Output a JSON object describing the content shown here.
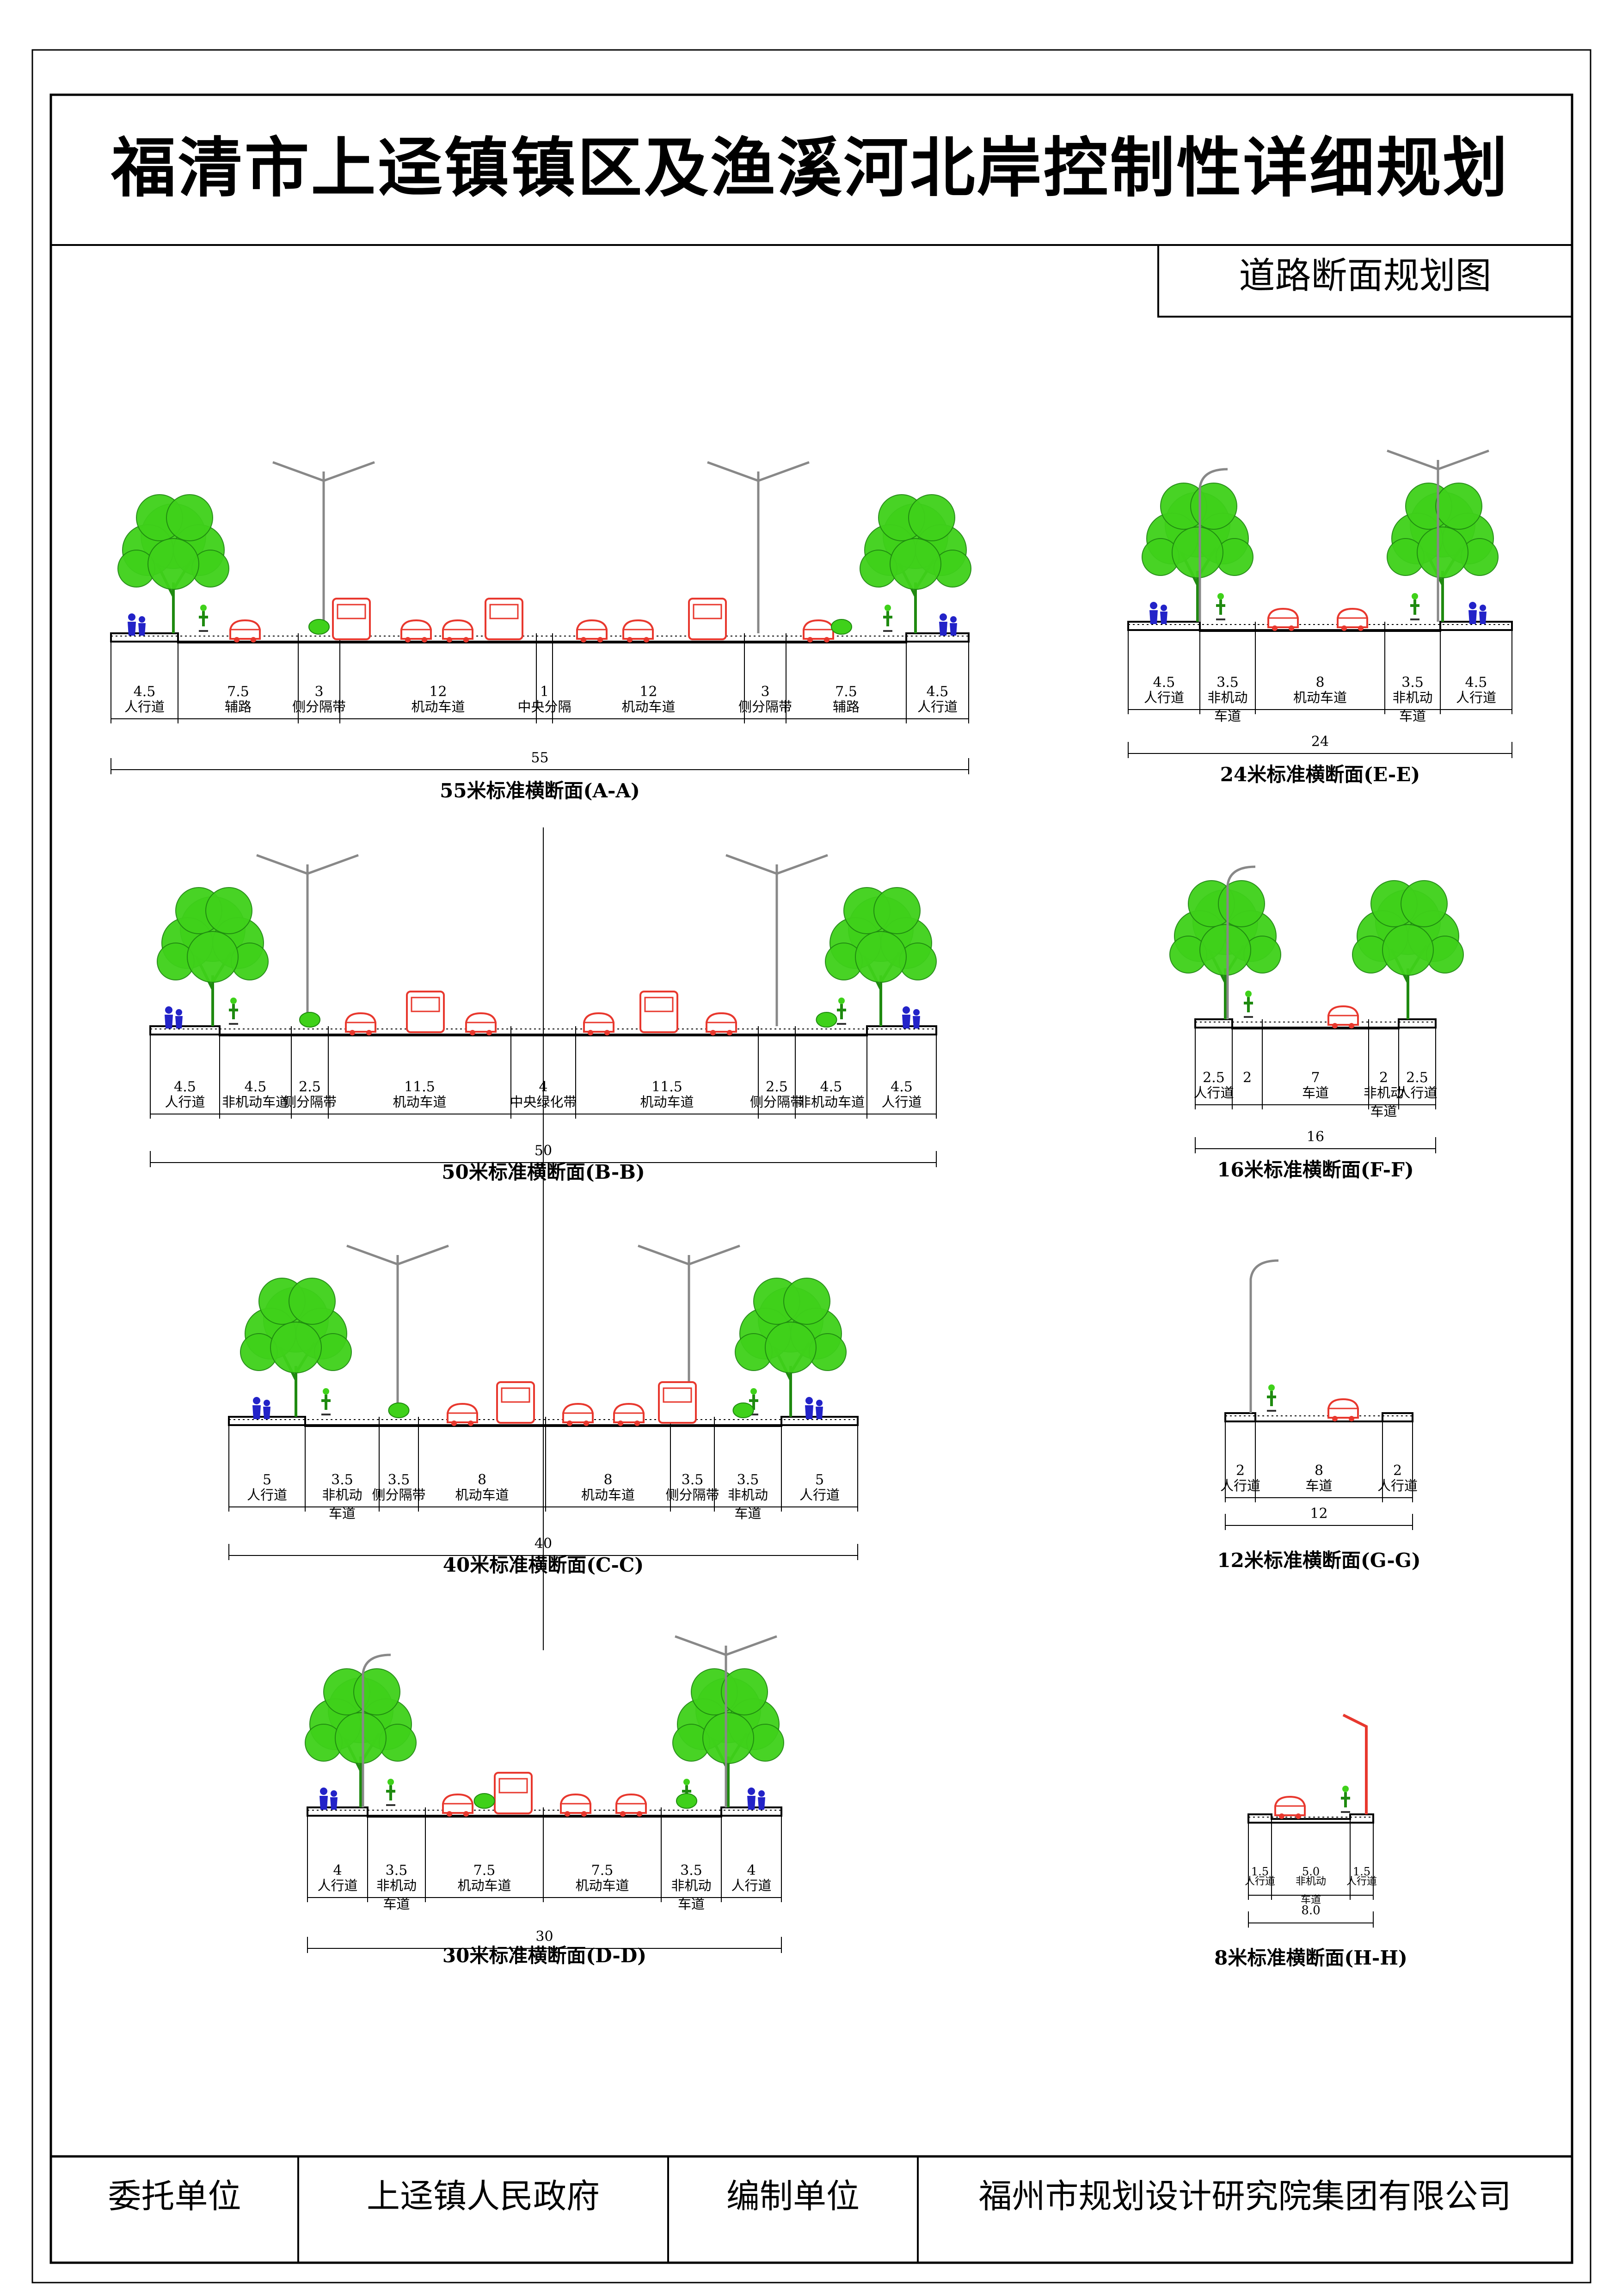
{
  "header": {
    "title": "福清市上迳镇镇区及渔溪河北岸控制性详细规划",
    "subtitle": "道路断面规划图"
  },
  "footer": {
    "client_label": "委托单位",
    "client_value": "上迳镇人民政府",
    "author_label": "编制单位",
    "author_value": "福州市规划设计研究院集团有限公司"
  },
  "sections": [
    {
      "id": "A-A",
      "title": "55米标准横断面(A-A)",
      "total": "55",
      "segments": [
        {
          "width": "4.5",
          "label": [
            "人行道"
          ]
        },
        {
          "width": "7.5",
          "label": [
            "辅路"
          ]
        },
        {
          "width": "3",
          "label": [
            "侧分隔带"
          ]
        },
        {
          "width": "12",
          "label": [
            "机动车道"
          ]
        },
        {
          "width": "1",
          "label": [
            "中央分隔"
          ]
        },
        {
          "width": "12",
          "label": [
            "机动车道"
          ]
        },
        {
          "width": "3",
          "label": [
            "侧分隔带"
          ]
        },
        {
          "width": "7.5",
          "label": [
            "辅路"
          ]
        },
        {
          "width": "4.5",
          "label": [
            "人行道"
          ]
        }
      ]
    },
    {
      "id": "B-B",
      "title": "50米标准横断面(B-B)",
      "total": "50",
      "segments": [
        {
          "width": "4.5",
          "label": [
            "人行道"
          ]
        },
        {
          "width": "4.5",
          "label": [
            "非机动车道"
          ]
        },
        {
          "width": "2.5",
          "label": [
            "侧分隔带"
          ]
        },
        {
          "width": "11.5",
          "label": [
            "机动车道"
          ]
        },
        {
          "width": "4",
          "label": [
            "中央绿化带"
          ]
        },
        {
          "width": "11.5",
          "label": [
            "机动车道"
          ]
        },
        {
          "width": "2.5",
          "label": [
            "侧分隔带"
          ]
        },
        {
          "width": "4.5",
          "label": [
            "非机动车道"
          ]
        },
        {
          "width": "4.5",
          "label": [
            "人行道"
          ]
        }
      ]
    },
    {
      "id": "C-C",
      "title": "40米标准横断面(C-C)",
      "total": "40",
      "segments": [
        {
          "width": "5",
          "label": [
            "人行道"
          ]
        },
        {
          "width": "3.5",
          "label": [
            "非机动",
            "车道"
          ]
        },
        {
          "width": "3.5",
          "label": [
            "侧分隔带"
          ]
        },
        {
          "width": "8",
          "label": [
            "机动车道"
          ]
        },
        {
          "width": "8",
          "label": [
            "机动车道"
          ]
        },
        {
          "width": "3.5",
          "label": [
            "侧分隔带"
          ]
        },
        {
          "width": "3.5",
          "label": [
            "非机动",
            "车道"
          ]
        },
        {
          "width": "5",
          "label": [
            "人行道"
          ]
        }
      ]
    },
    {
      "id": "D-D",
      "title": "30米标准横断面(D-D)",
      "total": "30",
      "segments": [
        {
          "width": "4",
          "label": [
            "人行道"
          ]
        },
        {
          "width": "3.5",
          "label": [
            "非机动",
            "车道"
          ]
        },
        {
          "width": "7.5",
          "label": [
            "机动车道"
          ]
        },
        {
          "width": "7.5",
          "label": [
            "机动车道"
          ]
        },
        {
          "width": "3.5",
          "label": [
            "非机动",
            "车道"
          ]
        },
        {
          "width": "4",
          "label": [
            "人行道"
          ]
        }
      ]
    },
    {
      "id": "E-E",
      "title": "24米标准横断面(E-E)",
      "total": "24",
      "segments": [
        {
          "width": "4.5",
          "label": [
            "人行道"
          ]
        },
        {
          "width": "3.5",
          "label": [
            "非机动",
            "车道"
          ]
        },
        {
          "width": "8",
          "label": [
            "机动车道"
          ]
        },
        {
          "width": "3.5",
          "label": [
            "非机动",
            "车道"
          ]
        },
        {
          "width": "4.5",
          "label": [
            "人行道"
          ]
        }
      ]
    },
    {
      "id": "F-F",
      "title": "16米标准横断面(F-F)",
      "total": "16",
      "segments": [
        {
          "width": "2.5",
          "label": [
            "人行道"
          ]
        },
        {
          "width": "2",
          "label": []
        },
        {
          "width": "7",
          "label": [
            "车道"
          ]
        },
        {
          "width": "2",
          "label": [
            "非机动",
            "车道"
          ]
        },
        {
          "width": "2.5",
          "label": [
            "人行道"
          ]
        }
      ]
    },
    {
      "id": "G-G",
      "title": "12米标准横断面(G-G)",
      "total": "12",
      "segments": [
        {
          "width": "2",
          "label": [
            "人行道"
          ]
        },
        {
          "width": "8",
          "label": [
            "车道"
          ]
        },
        {
          "width": "2",
          "label": [
            "人行道"
          ]
        }
      ]
    },
    {
      "id": "H-H",
      "title": "8米标准横断面(H-H)",
      "total": "8.0",
      "segments": [
        {
          "width": "1.5",
          "label": [
            "人行道"
          ]
        },
        {
          "width": "5.0",
          "label": [
            "非机动",
            "车道"
          ]
        },
        {
          "width": "1.5",
          "label": [
            "人行道"
          ]
        }
      ]
    }
  ],
  "colors": {
    "tree": "#3fd11a",
    "tree_dark": "#1f8a10",
    "car": "#e8382e",
    "person": "#2323c8",
    "lamp": "#888888",
    "lamp_red": "#e8382e"
  }
}
